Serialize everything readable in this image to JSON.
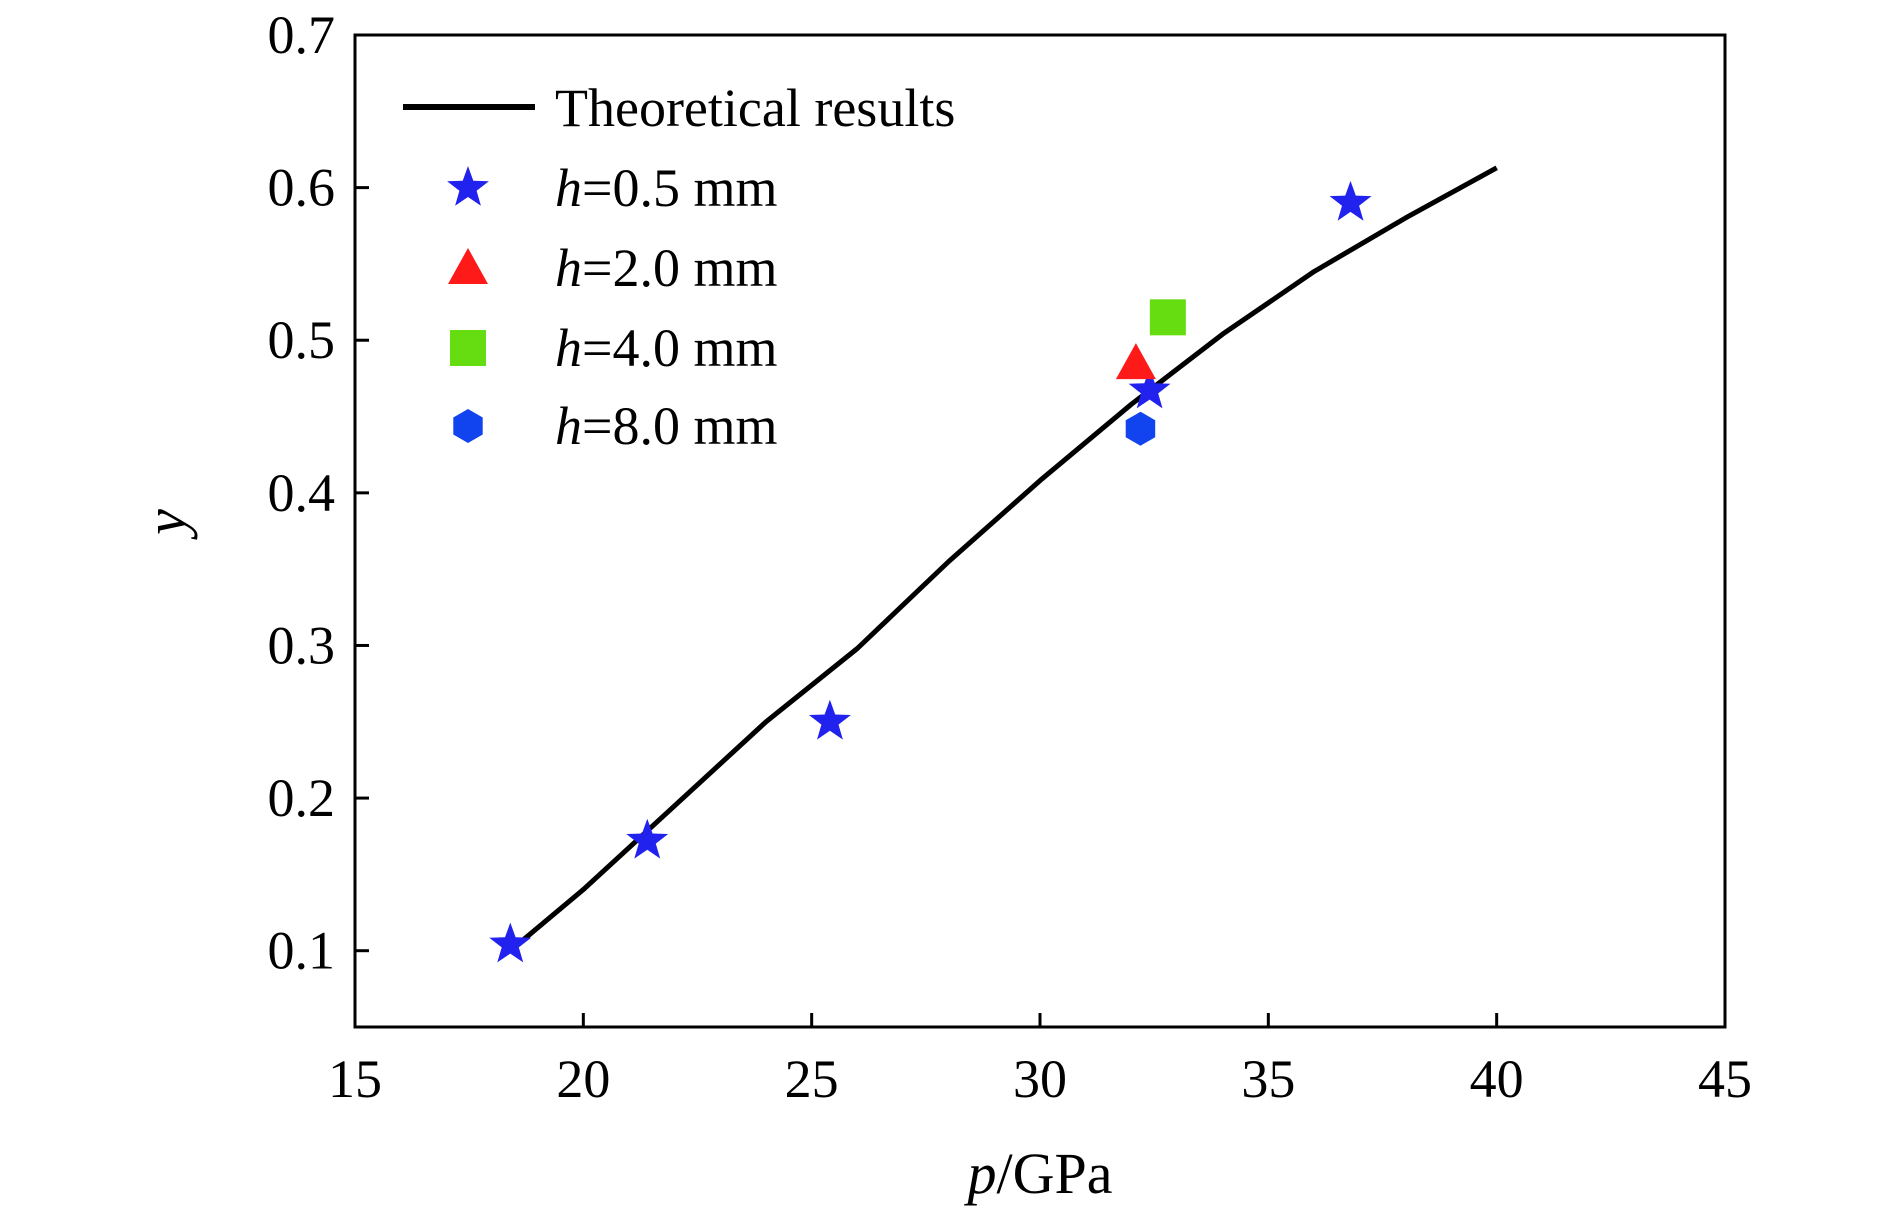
{
  "chart_data": {
    "type": "scatter",
    "title": "",
    "xlabel": {
      "var": "p",
      "unit": "/GPa"
    },
    "ylabel": "y",
    "xlim": [
      15,
      45
    ],
    "ylim": [
      0.05,
      0.7
    ],
    "xticks": [
      "15",
      "20",
      "25",
      "30",
      "35",
      "40",
      "45"
    ],
    "yticks": [
      "0.1",
      "0.2",
      "0.3",
      "0.4",
      "0.5",
      "0.6",
      "0.7"
    ],
    "grid": false,
    "legend_position": "top-left",
    "series": [
      {
        "name": "Theoretical results",
        "kind": "line",
        "color": "#000000",
        "points": [
          [
            18.6,
            0.105
          ],
          [
            20,
            0.14
          ],
          [
            22,
            0.195
          ],
          [
            24,
            0.25
          ],
          [
            26,
            0.298
          ],
          [
            28,
            0.355
          ],
          [
            30,
            0.408
          ],
          [
            32,
            0.458
          ],
          [
            34,
            0.504
          ],
          [
            36,
            0.545
          ],
          [
            38,
            0.58
          ],
          [
            40,
            0.613
          ]
        ]
      },
      {
        "name_var": "h",
        "name_value": "=0.5 mm",
        "kind": "scatter",
        "marker": "star",
        "color": "#2222ee",
        "points": [
          [
            18.4,
            0.104
          ],
          [
            21.4,
            0.172
          ],
          [
            25.4,
            0.25
          ],
          [
            32.4,
            0.467
          ],
          [
            36.8,
            0.59
          ]
        ]
      },
      {
        "name_var": "h",
        "name_value": "=2.0 mm",
        "kind": "scatter",
        "marker": "triangle",
        "color": "#ff1a1a",
        "points": [
          [
            32.1,
            0.485
          ]
        ]
      },
      {
        "name_var": "h",
        "name_value": "=4.0 mm",
        "kind": "scatter",
        "marker": "square",
        "color": "#66dd11",
        "points": [
          [
            32.8,
            0.515
          ]
        ]
      },
      {
        "name_var": "h",
        "name_value": "=8.0 mm",
        "kind": "scatter",
        "marker": "hexagon",
        "color": "#1144ee",
        "points": [
          [
            32.2,
            0.442
          ]
        ]
      }
    ]
  }
}
